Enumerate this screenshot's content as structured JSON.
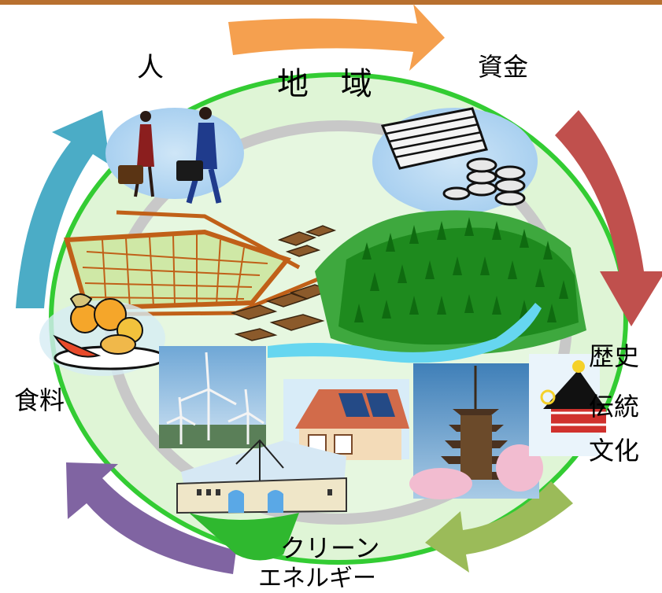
{
  "header_bar_color": "#b8702f",
  "diagram": {
    "center_title": "地 域",
    "labels": {
      "people": "人",
      "funds": "資金",
      "food": "食料",
      "history_line1": "歴史",
      "history_line2": "伝統",
      "history_line3": "文化",
      "energy_line1": "クリーン",
      "energy_line2": "エネルギー"
    },
    "cycle_arrows": [
      {
        "name": "top",
        "color": "#f5a04f"
      },
      {
        "name": "right",
        "color": "#c0504d"
      },
      {
        "name": "bottom-right",
        "color": "#9bbb59"
      },
      {
        "name": "bottom-left",
        "color": "#8064a2"
      },
      {
        "name": "left",
        "color": "#4bacc6"
      }
    ],
    "ring_colors": {
      "outer": "#33cc33",
      "inner": "#c8c8c8",
      "fill": "#dff5d6"
    },
    "icons": [
      "businesspeople-icon",
      "money-stack-icon",
      "farm-field-icon",
      "village-houses-icon",
      "forest-hill-icon",
      "river-icon",
      "fruit-bowl-icon",
      "wind-turbine-icon",
      "solar-house-icon",
      "pagoda-icon",
      "festival-float-icon",
      "dam-powerline-icon"
    ]
  }
}
